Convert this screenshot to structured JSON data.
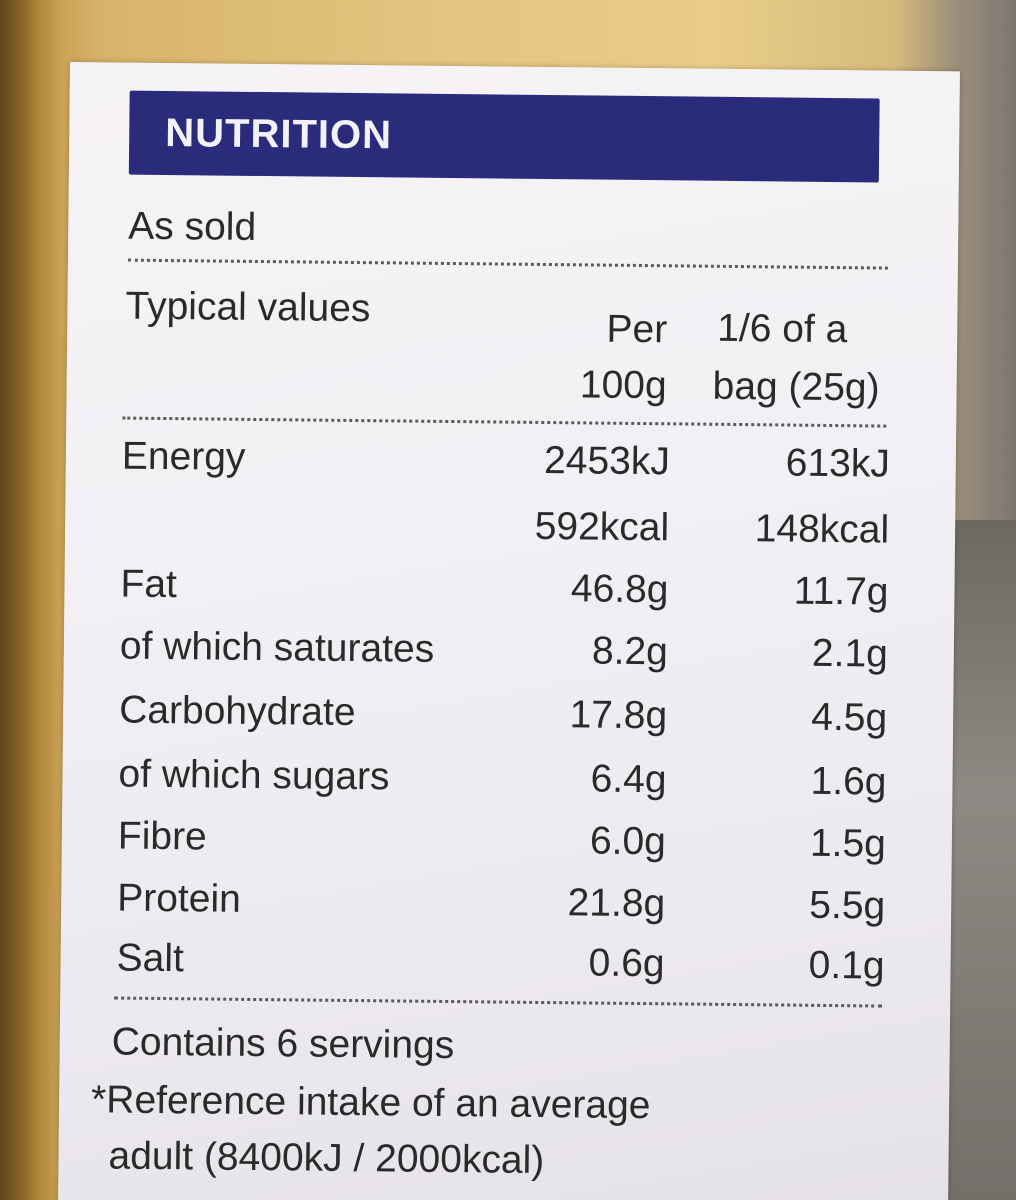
{
  "title": "NUTRITION",
  "subtitle": "As sold",
  "columns": {
    "label": "Typical values",
    "per100_line1": "Per",
    "per100_line2": "100g",
    "perServing_line1": "1/6 of a",
    "perServing_line2": "bag (25g)"
  },
  "rows": [
    {
      "name": "Energy",
      "per100": "2453kJ",
      "perServing": "613kJ"
    },
    {
      "name": "",
      "per100": "592kcal",
      "perServing": "148kcal"
    },
    {
      "name": "Fat",
      "per100": "46.8g",
      "perServing": "11.7g"
    },
    {
      "name": "of which saturates",
      "per100": "8.2g",
      "perServing": "2.1g"
    },
    {
      "name": "Carbohydrate",
      "per100": "17.8g",
      "perServing": "4.5g"
    },
    {
      "name": "of which sugars",
      "per100": "6.4g",
      "perServing": "1.6g"
    },
    {
      "name": "Fibre",
      "per100": "6.0g",
      "perServing": "1.5g"
    },
    {
      "name": "Protein",
      "per100": "21.8g",
      "perServing": "5.5g"
    },
    {
      "name": "Salt",
      "per100": "0.6g",
      "perServing": "0.1g"
    }
  ],
  "footer": {
    "servings": "Contains 6 servings",
    "reference_line1": "*Reference intake of an average",
    "reference_line2": "adult (8400kJ / 2000kcal)"
  },
  "colors": {
    "header_bg": "#2a2b7a",
    "label_bg": "#f2f0f4",
    "text": "#2a2a2a"
  }
}
